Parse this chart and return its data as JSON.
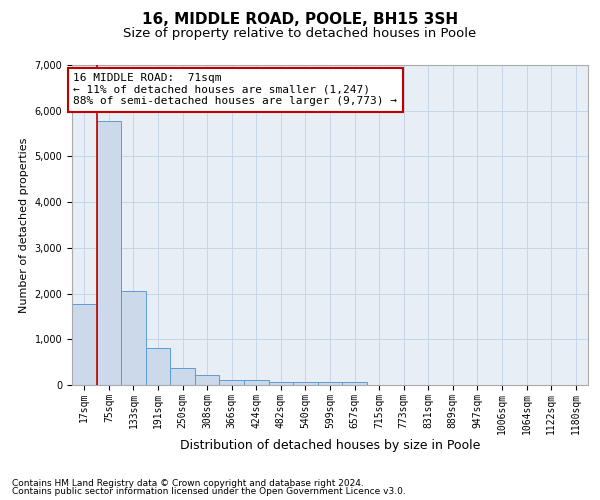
{
  "title": "16, MIDDLE ROAD, POOLE, BH15 3SH",
  "subtitle": "Size of property relative to detached houses in Poole",
  "xlabel": "Distribution of detached houses by size in Poole",
  "ylabel": "Number of detached properties",
  "footnote1": "Contains HM Land Registry data © Crown copyright and database right 2024.",
  "footnote2": "Contains public sector information licensed under the Open Government Licence v3.0.",
  "bar_labels": [
    "17sqm",
    "75sqm",
    "133sqm",
    "191sqm",
    "250sqm",
    "308sqm",
    "366sqm",
    "424sqm",
    "482sqm",
    "540sqm",
    "599sqm",
    "657sqm",
    "715sqm",
    "773sqm",
    "831sqm",
    "889sqm",
    "947sqm",
    "1006sqm",
    "1064sqm",
    "1122sqm",
    "1180sqm"
  ],
  "bar_values": [
    1780,
    5780,
    2050,
    820,
    370,
    210,
    100,
    100,
    60,
    60,
    60,
    60,
    0,
    0,
    0,
    0,
    0,
    0,
    0,
    0,
    0
  ],
  "bar_color": "#ccd9ea",
  "bar_edge_color": "#5b9bd5",
  "vline_color": "#c00000",
  "vline_x": 0.5,
  "annotation_text": "16 MIDDLE ROAD:  71sqm\n← 11% of detached houses are smaller (1,247)\n88% of semi-detached houses are larger (9,773) →",
  "annotation_box_color": "#ffffff",
  "annotation_border_color": "#c00000",
  "ylim": [
    0,
    7000
  ],
  "yticks": [
    0,
    1000,
    2000,
    3000,
    4000,
    5000,
    6000,
    7000
  ],
  "bg_color": "#ffffff",
  "plot_bg_color": "#e8eef5",
  "grid_color": "#c5d5e8",
  "title_fontsize": 11,
  "subtitle_fontsize": 9.5,
  "xlabel_fontsize": 9,
  "ylabel_fontsize": 8,
  "tick_fontsize": 7,
  "annotation_fontsize": 8,
  "footnote_fontsize": 6.5
}
